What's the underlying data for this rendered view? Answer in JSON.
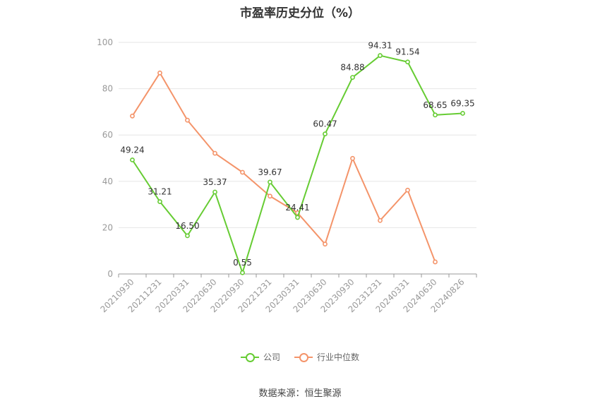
{
  "chart_data": {
    "type": "line",
    "title": "市盈率历史分位（%）",
    "categories": [
      "20210930",
      "20211231",
      "20220331",
      "20220630",
      "20220930",
      "20221231",
      "20230331",
      "20230630",
      "20230930",
      "20231231",
      "20240331",
      "20240630",
      "20240826"
    ],
    "series": [
      {
        "name": "公司",
        "color": "#66cc33",
        "values": [
          49.24,
          31.21,
          16.5,
          35.37,
          0.55,
          39.67,
          24.41,
          60.47,
          84.88,
          94.31,
          91.54,
          68.65,
          69.35
        ],
        "labels": [
          "49.24",
          "31.21",
          "16.50",
          "35.37",
          "0.55",
          "39.67",
          "24.41",
          "60.47",
          "84.88",
          "94.31",
          "91.54",
          "68.65",
          "69.35"
        ]
      },
      {
        "name": "行业中位数",
        "color": "#f4946a",
        "values": [
          68.2,
          86.8,
          66.4,
          52.1,
          43.9,
          33.6,
          26.4,
          12.9,
          49.9,
          23.1,
          36.2,
          5.2,
          null
        ]
      }
    ],
    "ylim": [
      0,
      100
    ],
    "yticks": [
      0,
      20,
      40,
      60,
      80,
      100
    ],
    "grid": true,
    "legend": "bottom-center"
  },
  "source": "数据来源：恒生聚源"
}
